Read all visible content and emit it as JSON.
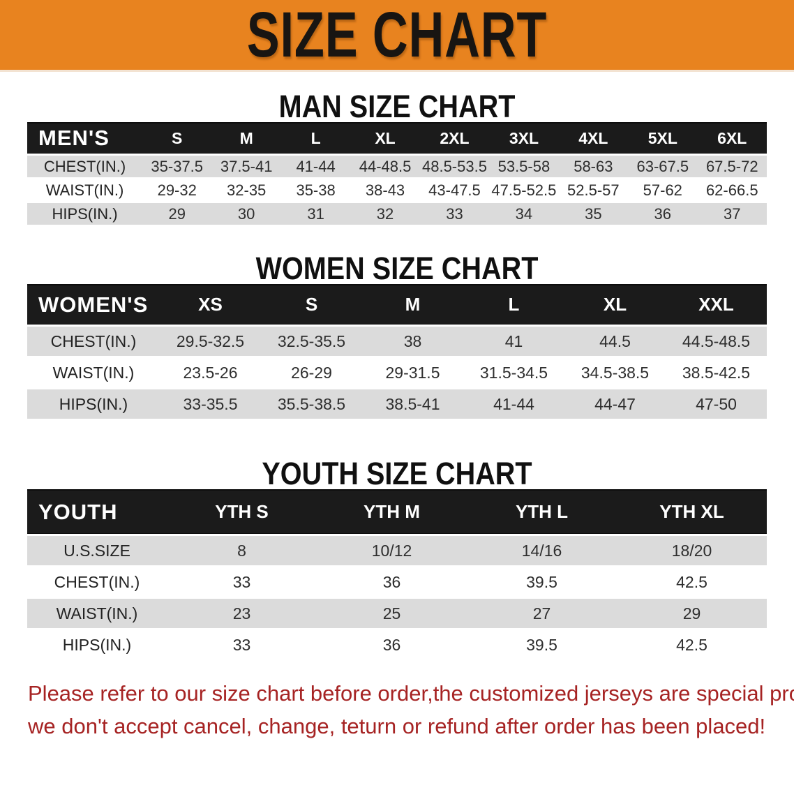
{
  "banner": {
    "title": "SIZE CHART"
  },
  "colors": {
    "banner_bg": "#E8831F",
    "table_header_bg": "#1B1B1B",
    "row_stripe": "#DBDBDB",
    "footer_text": "#A62323"
  },
  "sections": [
    {
      "heading": "MAN SIZE CHART",
      "table": {
        "corner_label": "MEN'S",
        "columns": [
          "S",
          "M",
          "L",
          "XL",
          "2XL",
          "3XL",
          "4XL",
          "5XL",
          "6XL"
        ],
        "rows": [
          {
            "label": "CHEST(IN.)",
            "values": [
              "35-37.5",
              "37.5-41",
              "41-44",
              "44-48.5",
              "48.5-53.5",
              "53.5-58",
              "58-63",
              "63-67.5",
              "67.5-72"
            ]
          },
          {
            "label": "WAIST(IN.)",
            "values": [
              "29-32",
              "32-35",
              "35-38",
              "38-43",
              "43-47.5",
              "47.5-52.5",
              "52.5-57",
              "57-62",
              "62-66.5"
            ]
          },
          {
            "label": "HIPS(IN.)",
            "values": [
              "29",
              "30",
              "31",
              "32",
              "33",
              "34",
              "35",
              "36",
              "37"
            ]
          }
        ]
      }
    },
    {
      "heading": "WOMEN SIZE CHART",
      "table": {
        "corner_label": "WOMEN'S",
        "columns": [
          "XS",
          "S",
          "M",
          "L",
          "XL",
          "XXL"
        ],
        "rows": [
          {
            "label": "CHEST(IN.)",
            "values": [
              "29.5-32.5",
              "32.5-35.5",
              "38",
              "41",
              "44.5",
              "44.5-48.5"
            ]
          },
          {
            "label": "WAIST(IN.)",
            "values": [
              "23.5-26",
              "26-29",
              "29-31.5",
              "31.5-34.5",
              "34.5-38.5",
              "38.5-42.5"
            ]
          },
          {
            "label": "HIPS(IN.)",
            "values": [
              "33-35.5",
              "35.5-38.5",
              "38.5-41",
              "41-44",
              "44-47",
              "47-50"
            ]
          }
        ]
      }
    },
    {
      "heading": "YOUTH SIZE CHART",
      "table": {
        "corner_label": "YOUTH",
        "columns": [
          "YTH S",
          "YTH M",
          "YTH L",
          "YTH XL"
        ],
        "rows": [
          {
            "label": "U.S.SIZE",
            "values": [
              "8",
              "10/12",
              "14/16",
              "18/20"
            ]
          },
          {
            "label": "CHEST(IN.)",
            "values": [
              "33",
              "36",
              "39.5",
              "42.5"
            ]
          },
          {
            "label": "WAIST(IN.)",
            "values": [
              "23",
              "25",
              "27",
              "29"
            ]
          },
          {
            "label": "HIPS(IN.)",
            "values": [
              "33",
              "36",
              "39.5",
              "42.5"
            ]
          }
        ]
      }
    }
  ],
  "footer": {
    "line1": "Please refer to our size chart before order,the customized jerseys are special products,",
    "line2": "we don't accept cancel, change, teturn or refund after order has been placed!"
  }
}
